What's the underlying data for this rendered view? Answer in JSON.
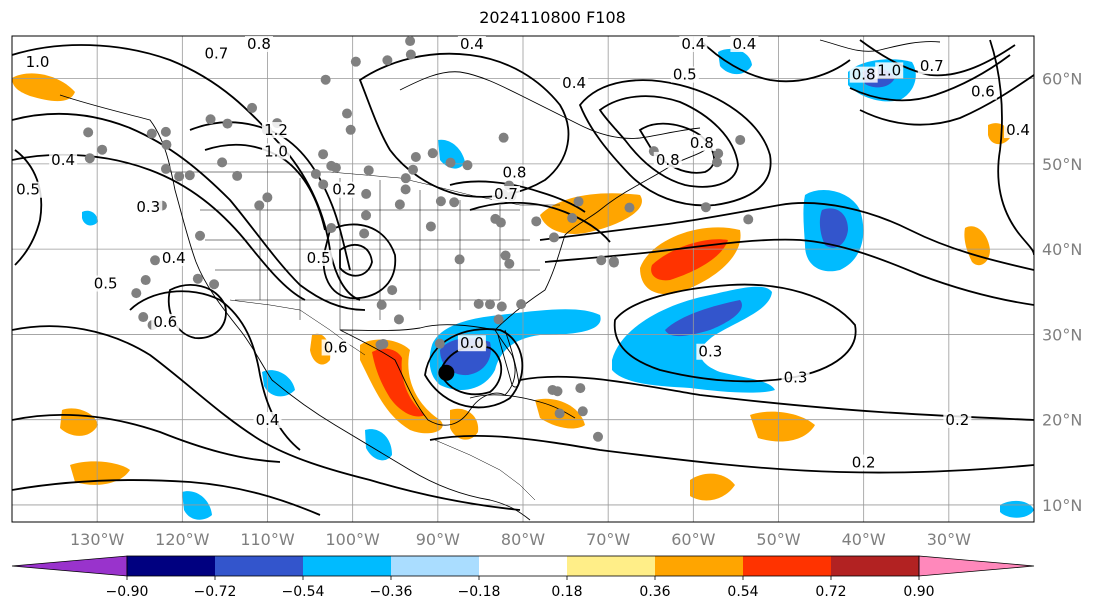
{
  "title": "2024110800 F108",
  "map": {
    "lon_range": [
      -140,
      -20
    ],
    "lat_range": [
      8,
      65
    ],
    "gridlines": true,
    "lon_ticks": [
      {
        "lon": -130,
        "label": "130°W"
      },
      {
        "lon": -120,
        "label": "120°W"
      },
      {
        "lon": -110,
        "label": "110°W"
      },
      {
        "lon": -100,
        "label": "100°W"
      },
      {
        "lon": -90,
        "label": "90°W"
      },
      {
        "lon": -80,
        "label": "80°W"
      },
      {
        "lon": -70,
        "label": "70°W"
      },
      {
        "lon": -60,
        "label": "60°W"
      },
      {
        "lon": -50,
        "label": "50°W"
      },
      {
        "lon": -40,
        "label": "40°W"
      },
      {
        "lon": -30,
        "label": "30°W"
      }
    ],
    "lat_ticks": [
      {
        "lat": 60,
        "label": "60°N"
      },
      {
        "lat": 50,
        "label": "50°N"
      },
      {
        "lat": 40,
        "label": "40°N"
      },
      {
        "lat": 30,
        "label": "30°N"
      },
      {
        "lat": 20,
        "label": "20°N"
      },
      {
        "lat": 10,
        "label": "10°N"
      }
    ],
    "storm_center": {
      "lon": -89,
      "lat": 25.5
    }
  },
  "contour_labels": [
    {
      "text": "1.0",
      "lon": -137,
      "lat": 61.5
    },
    {
      "text": "0.7",
      "lon": -116,
      "lat": 62.5
    },
    {
      "text": "0.8",
      "lon": -111,
      "lat": 64.5
    },
    {
      "text": "1.2",
      "lon": -109,
      "lat": 53.5
    },
    {
      "text": "1.0",
      "lon": -109,
      "lat": 51
    },
    {
      "text": "0.4",
      "lon": -134,
      "lat": 50
    },
    {
      "text": "0.5",
      "lon": -140,
      "lat": 46.5
    },
    {
      "text": "0.3",
      "lon": -124,
      "lat": 44.5
    },
    {
      "text": "0.4",
      "lon": -121,
      "lat": 38.5
    },
    {
      "text": "0.5",
      "lon": -129,
      "lat": 35.5
    },
    {
      "text": "0.6",
      "lon": -122,
      "lat": 31
    },
    {
      "text": "0.4",
      "lon": -110,
      "lat": 19.5
    },
    {
      "text": "0.2",
      "lon": -101,
      "lat": 46.5
    },
    {
      "text": "0.5",
      "lon": -104,
      "lat": 38.5
    },
    {
      "text": "0.6",
      "lon": -102,
      "lat": 28
    },
    {
      "text": "0.4",
      "lon": -86,
      "lat": 64
    },
    {
      "text": "0.4",
      "lon": -74,
      "lat": 59
    },
    {
      "text": "0.8",
      "lon": -81,
      "lat": 48.5
    },
    {
      "text": "0.7",
      "lon": -82,
      "lat": 46
    },
    {
      "text": "0.8",
      "lon": -63,
      "lat": 50
    },
    {
      "text": "0.8",
      "lon": -59,
      "lat": 52
    },
    {
      "text": "0.4",
      "lon": -60,
      "lat": 64.5
    },
    {
      "text": "0.4",
      "lon": -54,
      "lat": 64
    },
    {
      "text": "0.5",
      "lon": -61,
      "lat": 60
    },
    {
      "text": "0.8",
      "lon": -40,
      "lat": 60
    },
    {
      "text": "1.0",
      "lon": -37,
      "lat": 60.5
    },
    {
      "text": "0.7",
      "lon": -32,
      "lat": 61
    },
    {
      "text": "0.6",
      "lon": -26,
      "lat": 58
    },
    {
      "text": "0.4",
      "lon": -21,
      "lat": 53.5
    },
    {
      "text": "0.0",
      "lon": -86,
      "lat": 28.5
    },
    {
      "text": "0.3",
      "lon": -58,
      "lat": 27.5
    },
    {
      "text": "0.3",
      "lon": -48,
      "lat": 24.5
    },
    {
      "text": "0.2",
      "lon": -29,
      "lat": 19.5
    },
    {
      "text": "0.2",
      "lon": -40,
      "lat": 14.5
    }
  ],
  "colorbar": {
    "colors": [
      "#9933cc",
      "#000080",
      "#3355cc",
      "#00bbff",
      "#aaddff",
      "#ffffff",
      "#ffee88",
      "#ffa500",
      "#ff3300",
      "#b22222",
      "#ff88bb"
    ],
    "ticks": [
      "−0.90",
      "−0.72",
      "−0.54",
      "−0.36",
      "−0.18",
      "0.18",
      "0.36",
      "0.54",
      "0.72",
      "0.90"
    ]
  }
}
